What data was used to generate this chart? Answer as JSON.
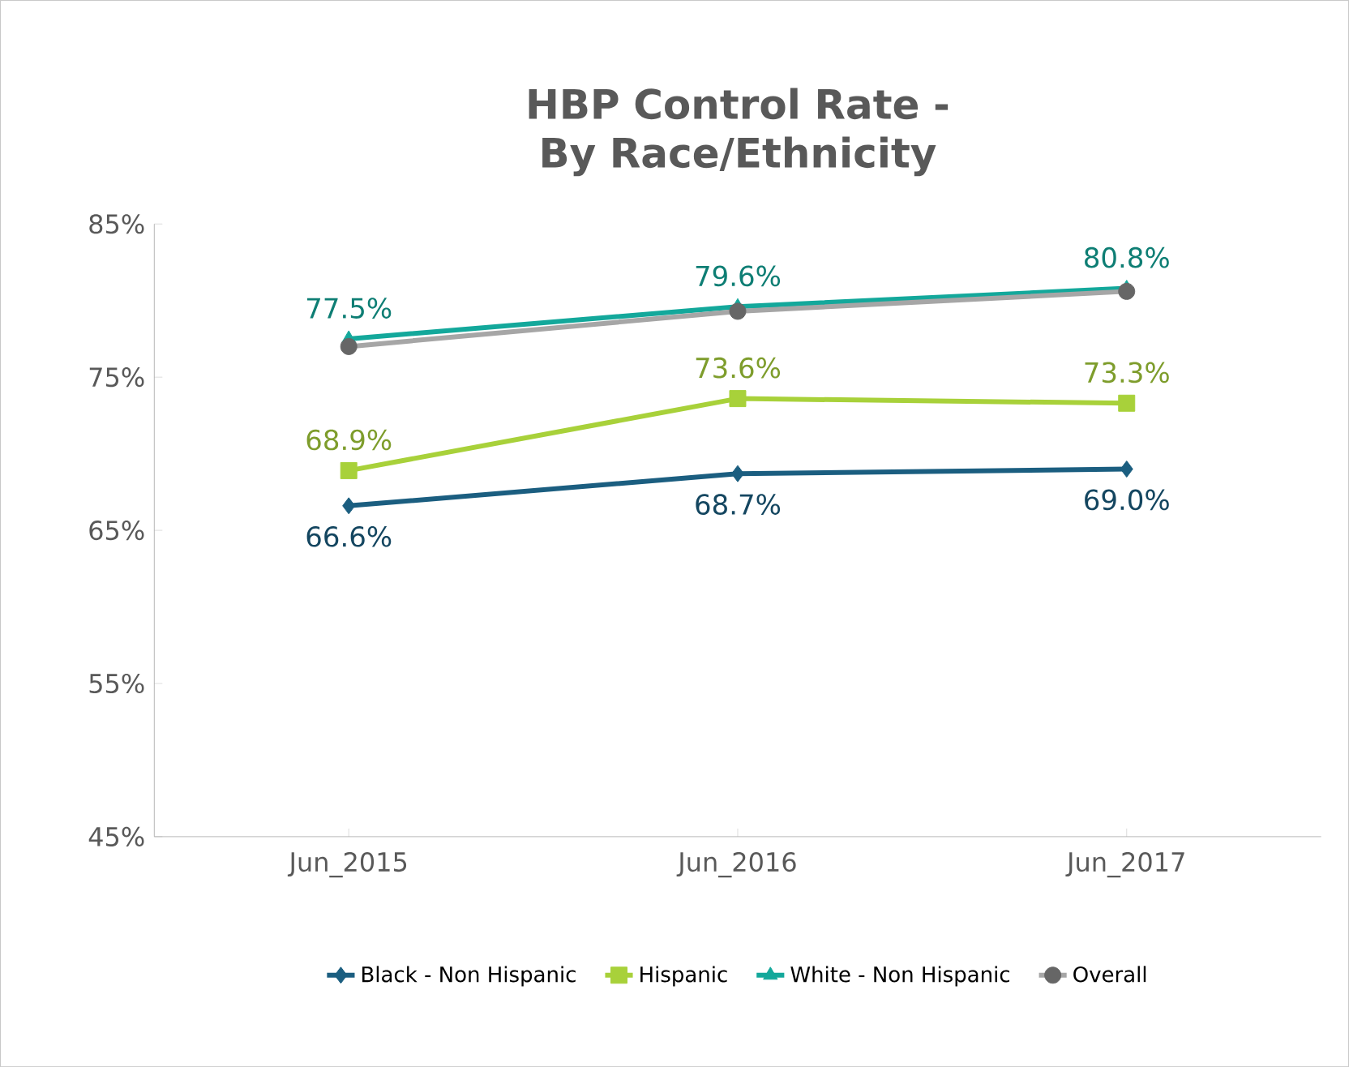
{
  "chart_data": {
    "type": "line",
    "title": "HBP Control Rate - By Race/Ethnicity",
    "categories": [
      "Jun_2015",
      "Jun_2016",
      "Jun_2017"
    ],
    "series": [
      {
        "name": "Black - Non Hispanic",
        "color": "#1b5e80",
        "marker": "diamond",
        "values": [
          66.6,
          68.7,
          69.0
        ],
        "value_labels": [
          "66.6%",
          "68.7%",
          "69.0%"
        ]
      },
      {
        "name": "Hispanic",
        "color": "#a8d13a",
        "marker": "square",
        "values": [
          68.9,
          73.6,
          73.3
        ],
        "value_labels": [
          "68.9%",
          "73.6%",
          "73.3%"
        ]
      },
      {
        "name": "White - Non Hispanic",
        "color": "#13a89b",
        "marker": "triangle",
        "values": [
          77.5,
          79.6,
          80.8
        ],
        "value_labels": [
          "77.5%",
          "79.6%",
          "80.8%"
        ]
      },
      {
        "name": "Overall",
        "color": "#a6a6a6",
        "marker": "circle",
        "values": [
          77.0,
          79.3,
          80.6
        ]
      }
    ],
    "ylim": [
      45,
      85
    ],
    "yticks": [
      {
        "value": 45,
        "label": "45%"
      },
      {
        "value": 55,
        "label": "55%"
      },
      {
        "value": 65,
        "label": "65%"
      },
      {
        "value": 75,
        "label": "75%"
      },
      {
        "value": 85,
        "label": "85%"
      }
    ],
    "grid": false,
    "legend": "bottom"
  }
}
